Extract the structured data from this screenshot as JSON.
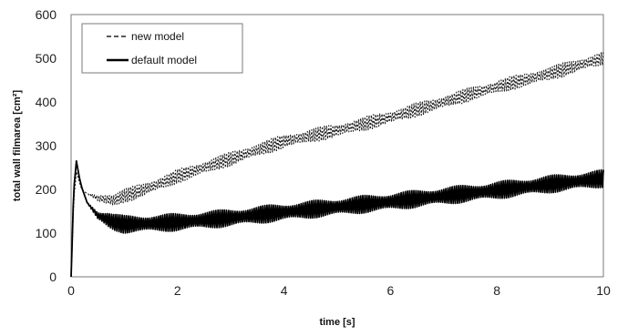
{
  "chart_data": {
    "type": "line",
    "title": "",
    "xlabel": "time [s]",
    "ylabel": "total wall filmarea [cm²]",
    "xlim": [
      0,
      10
    ],
    "ylim": [
      0,
      600
    ],
    "xticks": [
      "0",
      "2",
      "4",
      "6",
      "8",
      "10"
    ],
    "yticks": [
      "0",
      "100",
      "200",
      "300",
      "400",
      "500",
      "600"
    ],
    "grid": false,
    "legend_position": "top-left",
    "series": [
      {
        "name": "new model",
        "style": "dashed",
        "color": "#222222",
        "x": [
          0,
          0.05,
          0.1,
          0.15,
          0.2,
          0.3,
          0.5,
          0.8,
          1.0,
          1.5,
          2.0,
          3.0,
          4.0,
          5.0,
          6.0,
          7.0,
          8.0,
          9.0,
          10.0
        ],
        "y": [
          0,
          180,
          240,
          220,
          200,
          190,
          180,
          175,
          185,
          205,
          230,
          270,
          310,
          335,
          365,
          400,
          435,
          465,
          500
        ],
        "oscillation_amplitude": 16
      },
      {
        "name": "default model",
        "style": "solid",
        "color": "#000000",
        "x": [
          0,
          0.05,
          0.1,
          0.15,
          0.2,
          0.3,
          0.5,
          0.8,
          1.0,
          1.5,
          2.0,
          3.0,
          4.0,
          5.0,
          6.0,
          7.0,
          8.0,
          9.0,
          10.0
        ],
        "y": [
          0,
          200,
          265,
          230,
          205,
          170,
          140,
          125,
          120,
          122,
          125,
          135,
          148,
          160,
          172,
          185,
          198,
          212,
          225
        ],
        "oscillation_amplitude": 20
      }
    ]
  }
}
